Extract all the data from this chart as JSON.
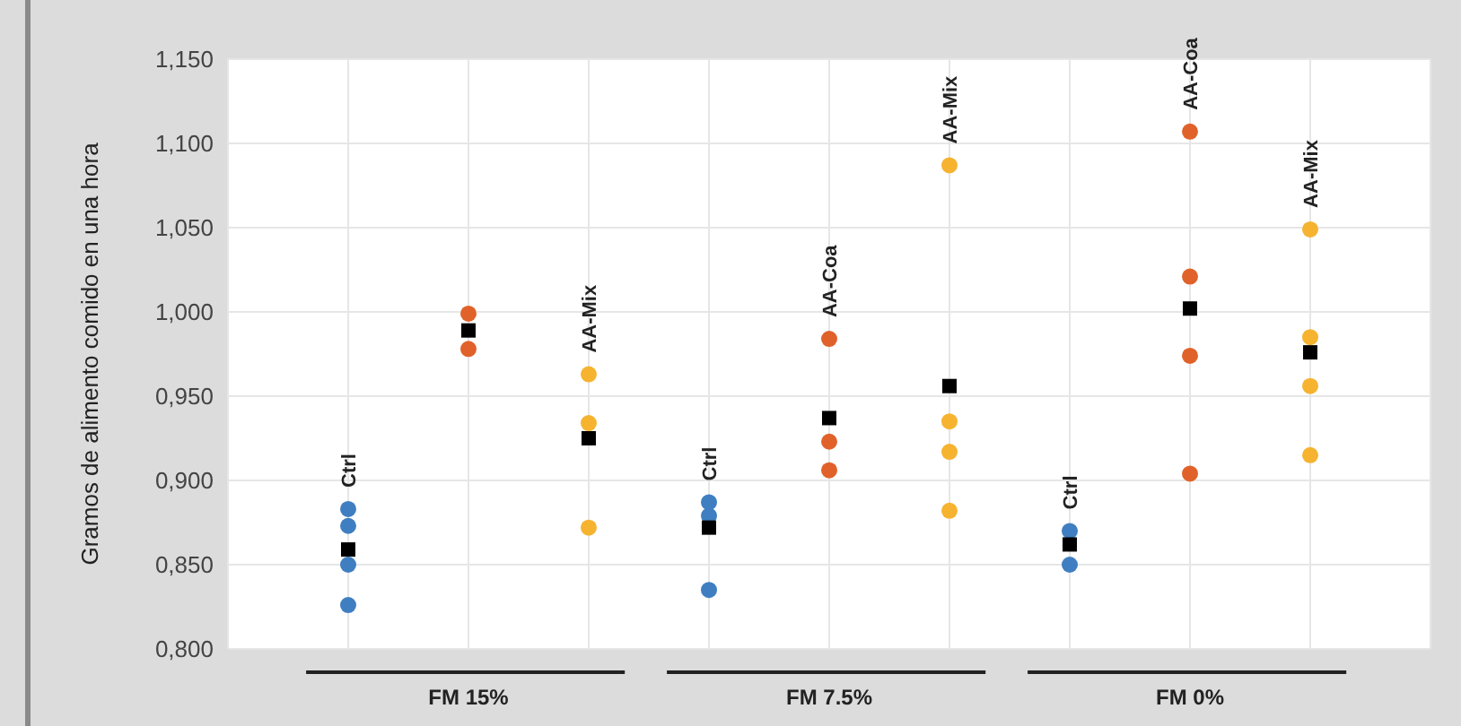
{
  "chart_data": {
    "type": "scatter",
    "ylabel": "Gramos de alimento comido en una hora",
    "categories": [
      "Ctrl",
      null,
      "AA-Mix",
      "Ctrl",
      "AA-Coa",
      "AA-Mix",
      "Ctrl",
      "AA-Coa",
      "AA-Mix"
    ],
    "annotations": [
      "FM 15%",
      "FM 7.5%",
      "FM 0%"
    ],
    "ylim": [
      0.8,
      1.15
    ],
    "yticks": [
      {
        "value": 0.8,
        "label": "0,800"
      },
      {
        "value": 0.85,
        "label": "0,850"
      },
      {
        "value": 0.9,
        "label": "0,900"
      },
      {
        "value": 0.95,
        "label": "0,950"
      },
      {
        "value": 1.0,
        "label": "1,000"
      },
      {
        "value": 1.05,
        "label": "1,050"
      },
      {
        "value": 1.1,
        "label": "1,100"
      },
      {
        "value": 1.15,
        "label": "1,150"
      }
    ],
    "grid": true,
    "series": [
      {
        "type": "scatter",
        "marker": "circle",
        "color": "#3f7fc1",
        "values": [
          0.883,
          null,
          null,
          0.887,
          null,
          null,
          0.87,
          null,
          null
        ]
      },
      {
        "type": "scatter",
        "marker": "circle",
        "color": "#3f7fc1",
        "values": [
          0.873,
          null,
          null,
          0.879,
          null,
          null,
          0.85,
          null,
          null
        ]
      },
      {
        "type": "scatter",
        "marker": "circle",
        "color": "#3f7fc1",
        "values": [
          0.85,
          null,
          null,
          0.835,
          null,
          null,
          null,
          null,
          null
        ]
      },
      {
        "type": "scatter",
        "marker": "circle",
        "color": "#3f7fc1",
        "values": [
          0.826,
          null,
          null,
          null,
          null,
          null,
          null,
          null,
          null
        ]
      },
      {
        "type": "scatter",
        "marker": "circle",
        "color": "#e0622a",
        "values": [
          null,
          0.999,
          null,
          null,
          0.984,
          null,
          null,
          1.107,
          null
        ]
      },
      {
        "type": "scatter",
        "marker": "circle",
        "color": "#e0622a",
        "values": [
          null,
          0.978,
          null,
          null,
          0.923,
          null,
          null,
          1.021,
          null
        ]
      },
      {
        "type": "scatter",
        "marker": "circle",
        "color": "#e0622a",
        "values": [
          null,
          null,
          null,
          null,
          0.906,
          null,
          null,
          0.974,
          null
        ]
      },
      {
        "type": "scatter",
        "marker": "circle",
        "color": "#e0622a",
        "values": [
          null,
          null,
          null,
          null,
          null,
          null,
          null,
          0.904,
          null
        ]
      },
      {
        "type": "scatter",
        "marker": "circle",
        "color": "#f5b330",
        "values": [
          null,
          null,
          0.963,
          null,
          null,
          1.087,
          null,
          null,
          1.049
        ]
      },
      {
        "type": "scatter",
        "marker": "circle",
        "color": "#f5b330",
        "values": [
          null,
          null,
          0.934,
          null,
          null,
          0.935,
          null,
          null,
          0.985
        ]
      },
      {
        "type": "scatter",
        "marker": "circle",
        "color": "#f5b330",
        "values": [
          null,
          null,
          0.872,
          null,
          null,
          0.917,
          null,
          null,
          0.956
        ]
      },
      {
        "type": "scatter",
        "marker": "circle",
        "color": "#f5b330",
        "values": [
          null,
          null,
          null,
          null,
          null,
          0.882,
          null,
          null,
          0.915
        ]
      },
      {
        "type": "scatter",
        "marker": "square",
        "color": "#000000",
        "values": [
          0.859,
          0.989,
          0.925,
          0.872,
          0.937,
          0.956,
          0.862,
          1.002,
          0.976
        ]
      }
    ]
  }
}
